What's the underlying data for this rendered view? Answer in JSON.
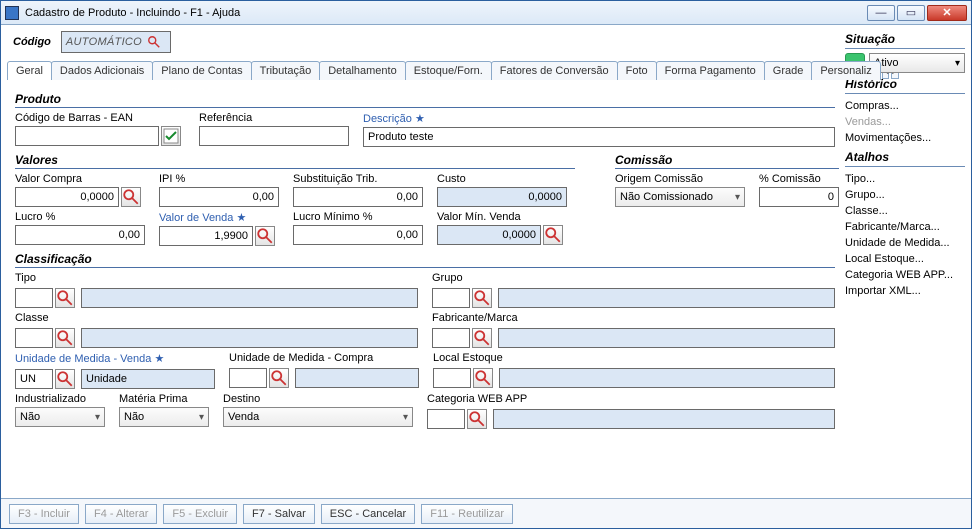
{
  "window": {
    "title": "Cadastro de Produto - Incluindo - F1 - Ajuda"
  },
  "codigo": {
    "label": "Código",
    "value": "AUTOMÁTICO"
  },
  "tabs": [
    "Geral",
    "Dados Adicionais",
    "Plano de Contas",
    "Tributação",
    "Detalhamento",
    "Estoque/Forn.",
    "Fatores de Conversão",
    "Foto",
    "Forma Pagamento",
    "Grade",
    "Personaliz"
  ],
  "sidebar": {
    "situacao_label": "Situação",
    "status_value": "Ativo",
    "status_color": "#3bc46e",
    "historico_label": "Histórico",
    "historico_links": [
      {
        "text": "Compras...",
        "dis": false
      },
      {
        "text": "Vendas...",
        "dis": true
      },
      {
        "text": "Movimentações...",
        "dis": false
      }
    ],
    "atalhos_label": "Atalhos",
    "atalho_links": [
      "Tipo...",
      "Grupo...",
      "Classe...",
      "Fabricante/Marca...",
      "Unidade de Medida...",
      "Local Estoque...",
      "Categoria WEB APP...",
      "Importar XML..."
    ]
  },
  "produto": {
    "section": "Produto",
    "ean_label": "Código de Barras - EAN",
    "ean_value": "",
    "ref_label": "Referência",
    "ref_value": "",
    "desc_label": "Descrição",
    "desc_value": "Produto teste"
  },
  "valores": {
    "section": "Valores",
    "valor_compra_label": "Valor Compra",
    "valor_compra": "0,0000",
    "ipi_label": "IPI %",
    "ipi": "0,00",
    "subst_label": "Substituição Trib.",
    "subst": "0,00",
    "custo_label": "Custo",
    "custo": "0,0000",
    "lucro_label": "Lucro %",
    "lucro": "0,00",
    "valor_venda_label": "Valor de Venda",
    "valor_venda": "1,9900",
    "lucro_min_label": "Lucro Mínimo %",
    "lucro_min": "0,00",
    "valor_min_label": "Valor Mín. Venda",
    "valor_min": "0,0000"
  },
  "comissao": {
    "section": "Comissão",
    "origem_label": "Origem Comissão",
    "origem_value": "Não Comissionado",
    "pct_label": "% Comissão",
    "pct": "0"
  },
  "class": {
    "section": "Classificação",
    "tipo_label": "Tipo",
    "grupo_label": "Grupo",
    "classe_label": "Classe",
    "fab_label": "Fabricante/Marca",
    "um_venda_label": "Unidade de Medida - Venda",
    "um_venda_code": "UN",
    "um_venda_disp": "Unidade",
    "um_compra_label": "Unidade de Medida - Compra",
    "local_label": "Local Estoque",
    "indus_label": "Industrializado",
    "indus_value": "Não",
    "mp_label": "Matéria Prima",
    "mp_value": "Não",
    "destino_label": "Destino",
    "destino_value": "Venda",
    "catweb_label": "Categoria WEB APP"
  },
  "footer": {
    "incluir": "F3 - Incluir",
    "alterar": "F4 - Alterar",
    "excluir": "F5 - Excluir",
    "salvar": "F7 - Salvar",
    "cancelar": "ESC - Cancelar",
    "reutilizar": "F11 - Reutilizar"
  }
}
